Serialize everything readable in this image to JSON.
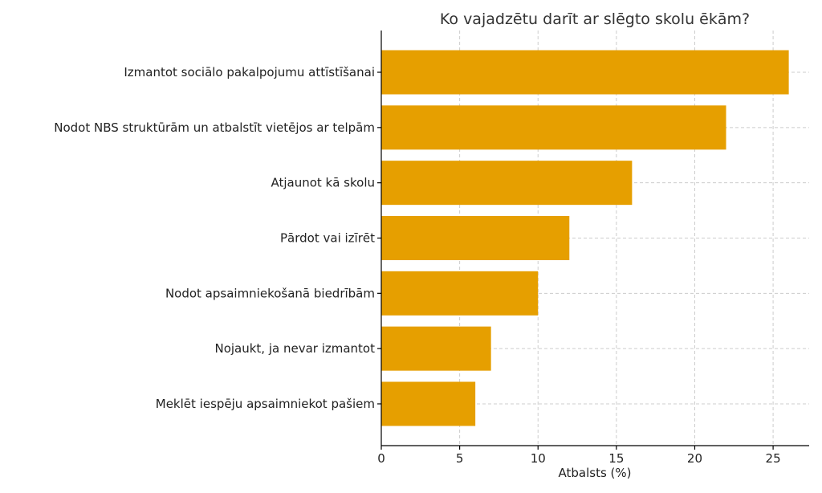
{
  "chart_data": {
    "type": "bar",
    "orientation": "horizontal",
    "title": "Ko vajadzētu darīt ar slēgto skolu ēkām?",
    "xlabel": "Atbalsts (%)",
    "ylabel": "",
    "xlim": [
      0,
      27.3
    ],
    "xticks": [
      0,
      5,
      10,
      15,
      20,
      25
    ],
    "grid": true,
    "bar_color": "#E69F00",
    "categories": [
      "Izmantot sociālo pakalpojumu attīstīšanai",
      "Nodot NBS struktūrām un atbalstīt vietējos ar telpām",
      "Atjaunot kā skolu",
      "Pārdot vai izīrēt",
      "Nodot apsaimniekošanā biedrībām",
      "Nojaukt, ja nevar izmantot",
      "Meklēt iespēju apsaimniekot pašiem"
    ],
    "values": [
      26,
      22,
      16,
      12,
      10,
      7,
      6
    ]
  }
}
